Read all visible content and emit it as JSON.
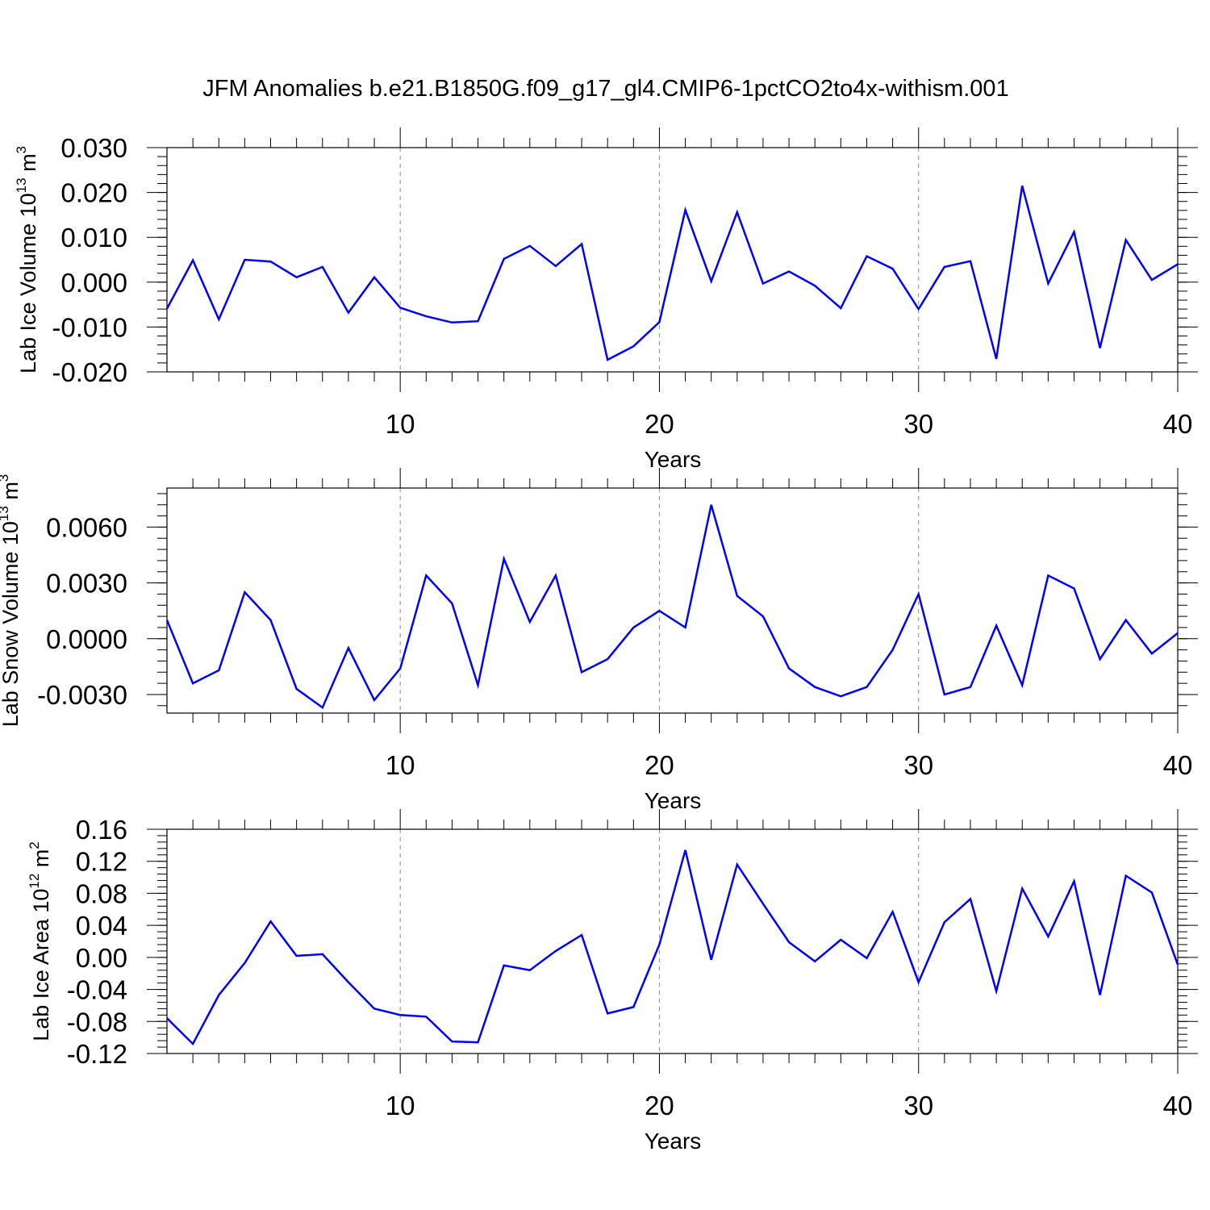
{
  "title": "JFM Anomalies b.e21.B1850G.f09_g17_gl4.CMIP6-1pctCO2to4x-withism.001",
  "colors": {
    "line": "#0000ff",
    "axis": "#000000",
    "grid": "#888888"
  },
  "chart_data": [
    {
      "type": "line",
      "id": "ice-volume",
      "ylabel_main": "Lab Ice Volume 10",
      "ylabel_exp": "13",
      "ylabel_unit": " m",
      "ylabel_unit_exp": "3",
      "xlabel": "Years",
      "xlim": [
        1,
        40
      ],
      "ylim": [
        -0.02,
        0.03
      ],
      "yticks": [
        -0.02,
        -0.01,
        0.0,
        0.01,
        0.02,
        0.03
      ],
      "ytick_labels": [
        "-0.020",
        "-0.010",
        "0.000",
        "0.010",
        "0.020",
        "0.030"
      ],
      "yminor_step": 0.002,
      "xticks": [
        10,
        20,
        30,
        40
      ],
      "xtick_labels": [
        "10",
        "20",
        "30",
        "40"
      ],
      "grid_x": [
        10,
        20,
        30
      ],
      "series": [
        {
          "name": "Lab Ice Volume",
          "x": [
            1,
            2,
            3,
            4,
            5,
            6,
            7,
            8,
            9,
            10,
            11,
            12,
            13,
            14,
            15,
            16,
            17,
            18,
            19,
            20,
            21,
            22,
            23,
            24,
            25,
            26,
            27,
            28,
            29,
            30,
            31,
            32,
            33,
            34,
            35,
            36,
            37,
            38,
            39,
            40
          ],
          "values": [
            -0.0059,
            0.0049,
            -0.0083,
            0.005,
            0.0046,
            0.0011,
            0.0034,
            -0.0068,
            0.0011,
            -0.0057,
            -0.0076,
            -0.009,
            -0.0087,
            0.0052,
            0.0081,
            0.0036,
            0.0085,
            -0.0173,
            -0.0143,
            -0.0089,
            0.0161,
            0.0002,
            0.0156,
            -0.0003,
            0.0024,
            -0.0008,
            -0.0058,
            0.0058,
            0.003,
            -0.006,
            0.0034,
            0.0047,
            -0.0171,
            0.0215,
            -0.0003,
            0.0112,
            -0.0147,
            0.0094,
            0.0005,
            0.004
          ]
        }
      ]
    },
    {
      "type": "line",
      "id": "snow-volume",
      "ylabel_main": "Lab Snow Volume 10",
      "ylabel_exp": "13",
      "ylabel_unit": " m",
      "ylabel_unit_exp": "3",
      "xlabel": "Years",
      "xlim": [
        1,
        40
      ],
      "ylim": [
        -0.004,
        0.0081
      ],
      "yticks": [
        -0.003,
        0.0,
        0.003,
        0.006
      ],
      "ytick_labels": [
        "-0.0030",
        "0.0000",
        "0.0030",
        "0.0060"
      ],
      "yminor_step": 0.0006,
      "xticks": [
        10,
        20,
        30,
        40
      ],
      "xtick_labels": [
        "10",
        "20",
        "30",
        "40"
      ],
      "grid_x": [
        10,
        20,
        30
      ],
      "series": [
        {
          "name": "Lab Snow Volume",
          "x": [
            1,
            2,
            3,
            4,
            5,
            6,
            7,
            8,
            9,
            10,
            11,
            12,
            13,
            14,
            15,
            16,
            17,
            18,
            19,
            20,
            21,
            22,
            23,
            24,
            25,
            26,
            27,
            28,
            29,
            30,
            31,
            32,
            33,
            34,
            35,
            36,
            37,
            38,
            39,
            40
          ],
          "values": [
            0.001,
            -0.0024,
            -0.0017,
            0.0025,
            0.001,
            -0.0027,
            -0.0037,
            -0.0005,
            -0.0033,
            -0.0016,
            0.0034,
            0.0019,
            -0.0025,
            0.0043,
            0.0009,
            0.0034,
            -0.0018,
            -0.0011,
            0.0006,
            0.0015,
            0.0006,
            0.0072,
            0.0023,
            0.0012,
            -0.0016,
            -0.0026,
            -0.0031,
            -0.0026,
            -0.0006,
            0.0024,
            -0.003,
            -0.0026,
            0.0007,
            -0.0025,
            0.0034,
            0.0027,
            -0.0011,
            0.001,
            -0.0008,
            0.0003
          ]
        }
      ]
    },
    {
      "type": "line",
      "id": "ice-area",
      "ylabel_main": "Lab Ice Area 10",
      "ylabel_exp": "12",
      "ylabel_unit": " m",
      "ylabel_unit_exp": "2",
      "xlabel": "Years",
      "xlim": [
        1,
        40
      ],
      "ylim": [
        -0.12,
        0.16
      ],
      "yticks": [
        -0.12,
        -0.08,
        -0.04,
        0.0,
        0.04,
        0.08,
        0.12,
        0.16
      ],
      "ytick_labels": [
        "-0.12",
        "-0.08",
        "-0.04",
        "0.00",
        "0.04",
        "0.08",
        "0.12",
        "0.16"
      ],
      "yminor_step": 0.008,
      "xticks": [
        10,
        20,
        30,
        40
      ],
      "xtick_labels": [
        "10",
        "20",
        "30",
        "40"
      ],
      "grid_x": [
        10,
        20,
        30
      ],
      "series": [
        {
          "name": "Lab Ice Area",
          "x": [
            1,
            2,
            3,
            4,
            5,
            6,
            7,
            8,
            9,
            10,
            11,
            12,
            13,
            14,
            15,
            16,
            17,
            18,
            19,
            20,
            21,
            22,
            23,
            24,
            25,
            26,
            27,
            28,
            29,
            30,
            31,
            32,
            33,
            34,
            35,
            36,
            37,
            38,
            39,
            40
          ],
          "values": [
            -0.076,
            -0.108,
            -0.047,
            -0.007,
            0.045,
            0.002,
            0.004,
            -0.031,
            -0.064,
            -0.072,
            -0.074,
            -0.105,
            -0.106,
            -0.01,
            -0.016,
            0.008,
            0.028,
            -0.07,
            -0.062,
            0.016,
            0.134,
            -0.003,
            0.116,
            0.067,
            0.019,
            -0.005,
            0.022,
            -0.001,
            0.057,
            -0.031,
            0.044,
            0.073,
            -0.042,
            0.086,
            0.026,
            0.095,
            -0.047,
            0.102,
            0.081,
            -0.009
          ]
        }
      ]
    }
  ]
}
